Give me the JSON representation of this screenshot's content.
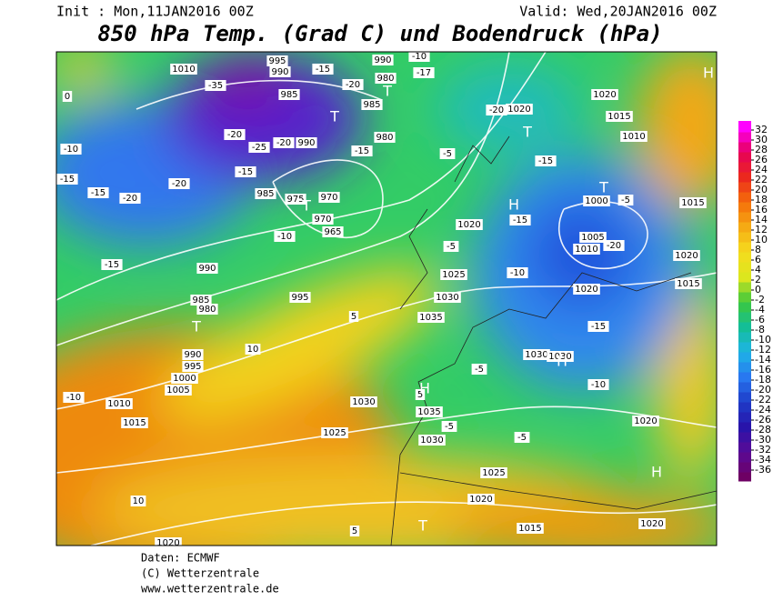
{
  "header": {
    "init": "Init : Mon,11JAN2016 00Z",
    "valid": "Valid: Wed,20JAN2016 00Z",
    "title": "850 hPa Temp. (Grad C) und Bodendruck (hPa)"
  },
  "colorbar": {
    "labels": [
      32,
      30,
      28,
      26,
      24,
      22,
      20,
      18,
      16,
      14,
      12,
      10,
      8,
      6,
      4,
      2,
      0,
      -2,
      -4,
      -6,
      -8,
      -10,
      -12,
      -14,
      -16,
      -18,
      -20,
      -22,
      -24,
      -26,
      -28,
      -30,
      -32,
      -34,
      -36
    ]
  },
  "map_labels": [
    "1010",
    "-35",
    "995",
    "990",
    "-15",
    "990",
    "-10",
    "980",
    "-17",
    "-20",
    "985",
    "985",
    "-20",
    "1020",
    "1020",
    "1015",
    "1010",
    "990",
    "-20",
    "-25",
    "-20",
    "980",
    "-15",
    "-5",
    "-15",
    "-10",
    "-15",
    "-15",
    "-20",
    "-20",
    "-15",
    "985",
    "975",
    "970",
    "970",
    "965",
    "-10",
    "1020",
    "-15",
    "1000",
    "-5",
    "1015",
    "1005",
    "-20",
    "1010",
    "-5",
    "990",
    "-15",
    "1025",
    "-10",
    "1020",
    "1015",
    "1020",
    "995",
    "985",
    "980",
    "1030",
    "1035",
    "-15",
    "990",
    "995",
    "1000",
    "1005",
    "-10",
    "1010",
    "1015",
    "1030",
    "1035",
    "-5",
    "1025",
    "1030",
    "-5",
    "1020",
    "1025",
    "1020",
    "10",
    "1020",
    "5",
    "1015",
    "1020",
    "0",
    "10",
    "5",
    "-10",
    "5",
    "-5",
    "1030",
    "1030",
    "T",
    "T",
    "T",
    "T",
    "T",
    "T",
    "T",
    "H",
    "H",
    "H",
    "H",
    "H"
  ],
  "footer": [
    "Daten: ECMWF",
    "(C) Wetterzentrale",
    "www.wetterzentrale.de"
  ]
}
